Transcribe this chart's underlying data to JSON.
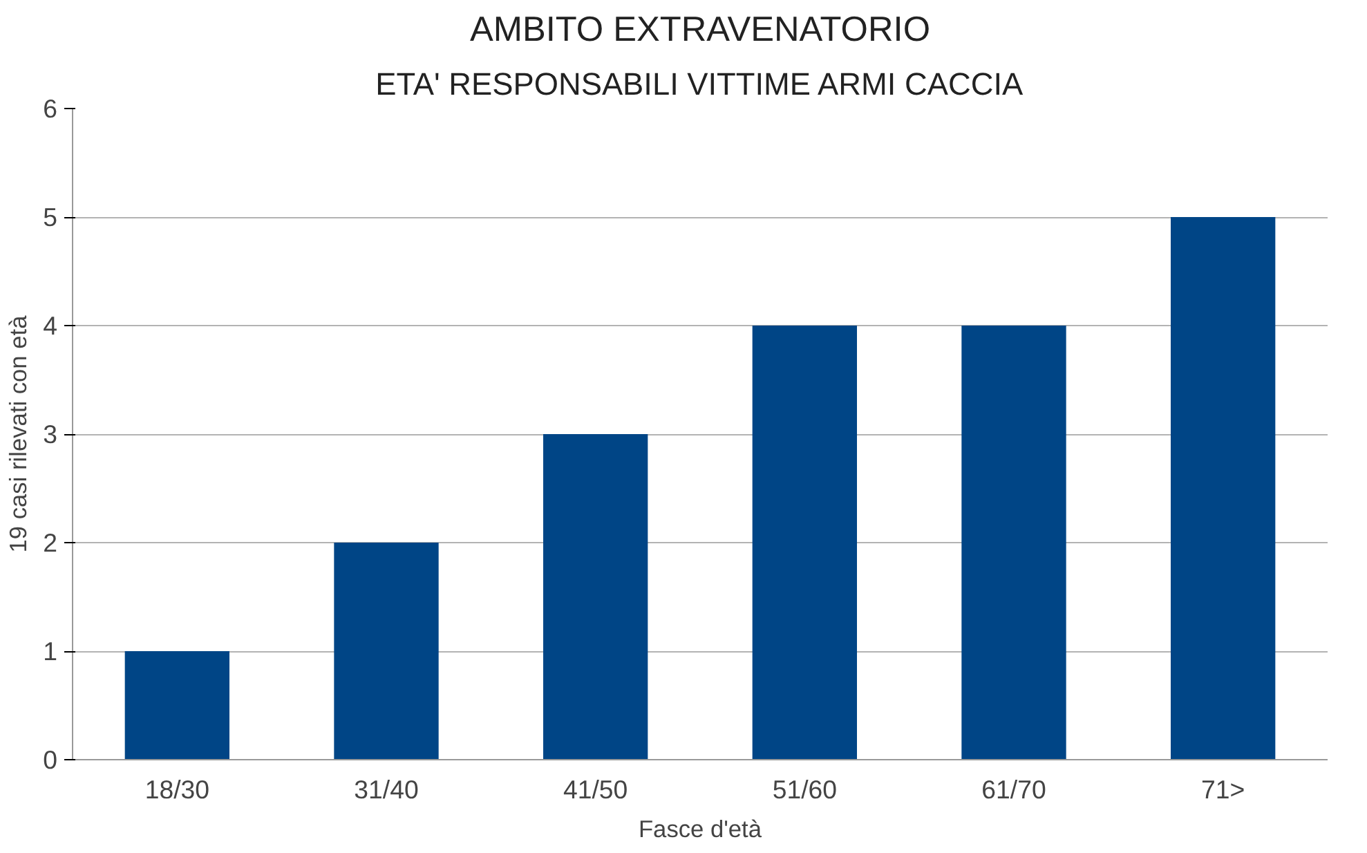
{
  "chart_data": {
    "type": "bar",
    "title": "AMBITO EXTRAVENATORIO",
    "subtitle": "ETA' RESPONSABILI VITTIME ARMI CACCIA",
    "xlabel": "Fasce d'età",
    "ylabel": "19 casi rilevati con età",
    "categories": [
      "18/30",
      "31/40",
      "41/50",
      "51/60",
      "61/70",
      "71>"
    ],
    "values": [
      1,
      2,
      3,
      4,
      4,
      5
    ],
    "color": "#004586",
    "ylim": [
      0,
      6
    ],
    "yticks": [
      0,
      1,
      2,
      3,
      4,
      5,
      6
    ],
    "grid": "y"
  }
}
